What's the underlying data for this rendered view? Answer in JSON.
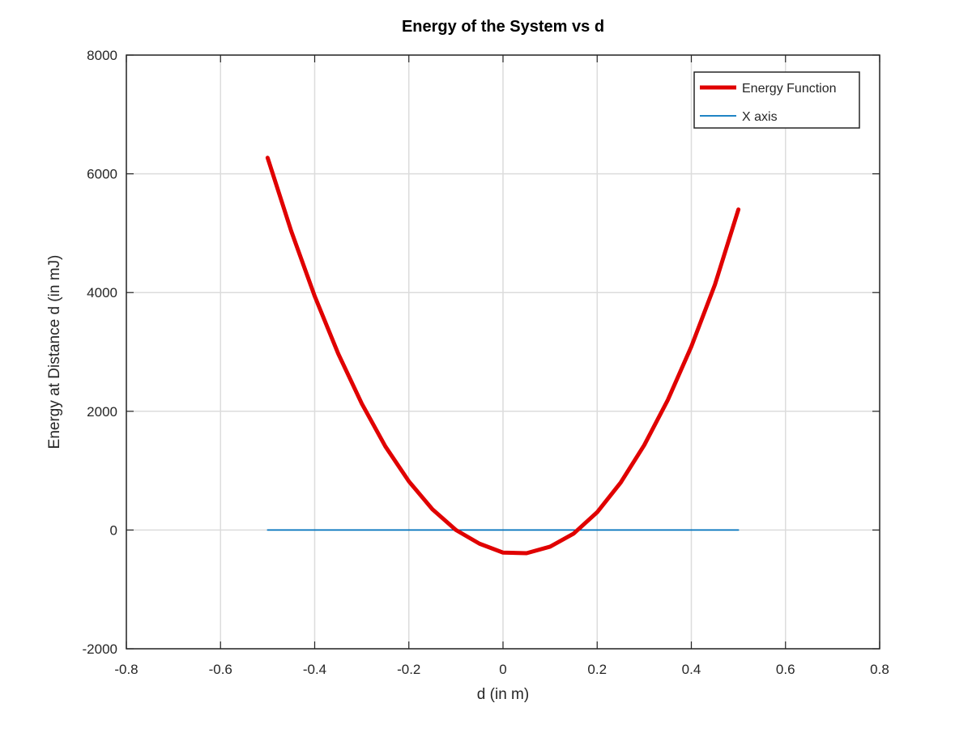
{
  "chart_data": {
    "type": "line",
    "title": "Energy of the System vs d",
    "xlabel": "d (in m)",
    "ylabel": "Energy at Distance d (in mJ)",
    "xlim": [
      -0.8,
      0.8
    ],
    "ylim": [
      -2000,
      8000
    ],
    "x_ticks": [
      -0.8,
      -0.6,
      -0.4,
      -0.2,
      0,
      0.2,
      0.4,
      0.6,
      0.8
    ],
    "x_tick_labels": [
      "-0.8",
      "-0.6",
      "-0.4",
      "-0.2",
      "0",
      "0.2",
      "0.4",
      "0.6",
      "0.8"
    ],
    "y_ticks": [
      -2000,
      0,
      2000,
      4000,
      6000,
      8000
    ],
    "y_tick_labels": [
      "-2000",
      "0",
      "2000",
      "4000",
      "6000",
      "8000"
    ],
    "grid": true,
    "legend_position": "top-right",
    "series": [
      {
        "name": "Energy Function",
        "color": "#e00000",
        "x": [
          -0.5,
          -0.45,
          -0.4,
          -0.35,
          -0.3,
          -0.25,
          -0.2,
          -0.15,
          -0.1,
          -0.05,
          0,
          0.05,
          0.1,
          0.15,
          0.2,
          0.25,
          0.3,
          0.35,
          0.4,
          0.45,
          0.5
        ],
        "y": [
          6270,
          5040,
          3940,
          2970,
          2130,
          1410,
          820,
          350,
          0,
          -230,
          -380,
          -390,
          -280,
          -60,
          300,
          800,
          1430,
          2190,
          3090,
          4130,
          5400
        ]
      },
      {
        "name": "X axis",
        "color": "#0072bd",
        "x": [
          -0.5,
          0.5
        ],
        "y": [
          0,
          0
        ]
      }
    ]
  }
}
